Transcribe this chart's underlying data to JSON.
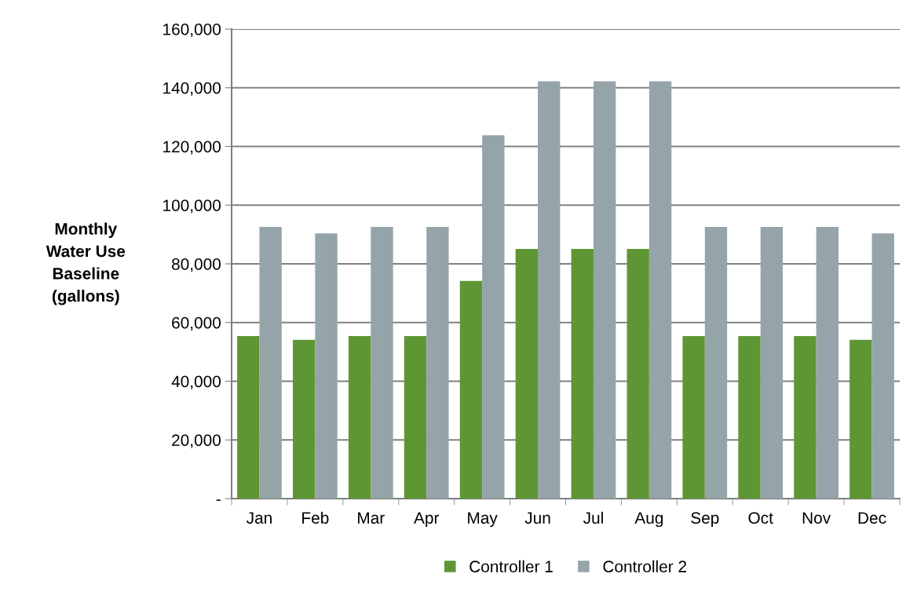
{
  "chart_data": {
    "type": "bar",
    "ylabel": "Monthly\nWater Use\nBaseline\n(gallons)",
    "categories": [
      "Jan",
      "Feb",
      "Mar",
      "Apr",
      "May",
      "Jun",
      "Jul",
      "Aug",
      "Sep",
      "Oct",
      "Nov",
      "Dec"
    ],
    "series": [
      {
        "name": "Controller 1",
        "color": "#5f9634",
        "values": [
          55400,
          54100,
          55400,
          55400,
          74200,
          85100,
          85100,
          85100,
          55400,
          55400,
          55400,
          54100
        ]
      },
      {
        "name": "Controller 2",
        "color": "#95a4a8",
        "values": [
          92600,
          90400,
          92600,
          92600,
          123800,
          142200,
          142200,
          142200,
          92600,
          92600,
          92600,
          90400
        ]
      }
    ],
    "ylim": [
      0,
      160000
    ],
    "yticks": [
      {
        "value": 0,
        "label": "-"
      },
      {
        "value": 20000,
        "label": "20,000"
      },
      {
        "value": 40000,
        "label": "40,000"
      },
      {
        "value": 60000,
        "label": "60,000"
      },
      {
        "value": 80000,
        "label": "80,000"
      },
      {
        "value": 100000,
        "label": "100,000"
      },
      {
        "value": 120000,
        "label": "120,000"
      },
      {
        "value": 140000,
        "label": "140,000"
      },
      {
        "value": 160000,
        "label": "160,000"
      }
    ],
    "grid": "y",
    "legend": "bottom"
  }
}
